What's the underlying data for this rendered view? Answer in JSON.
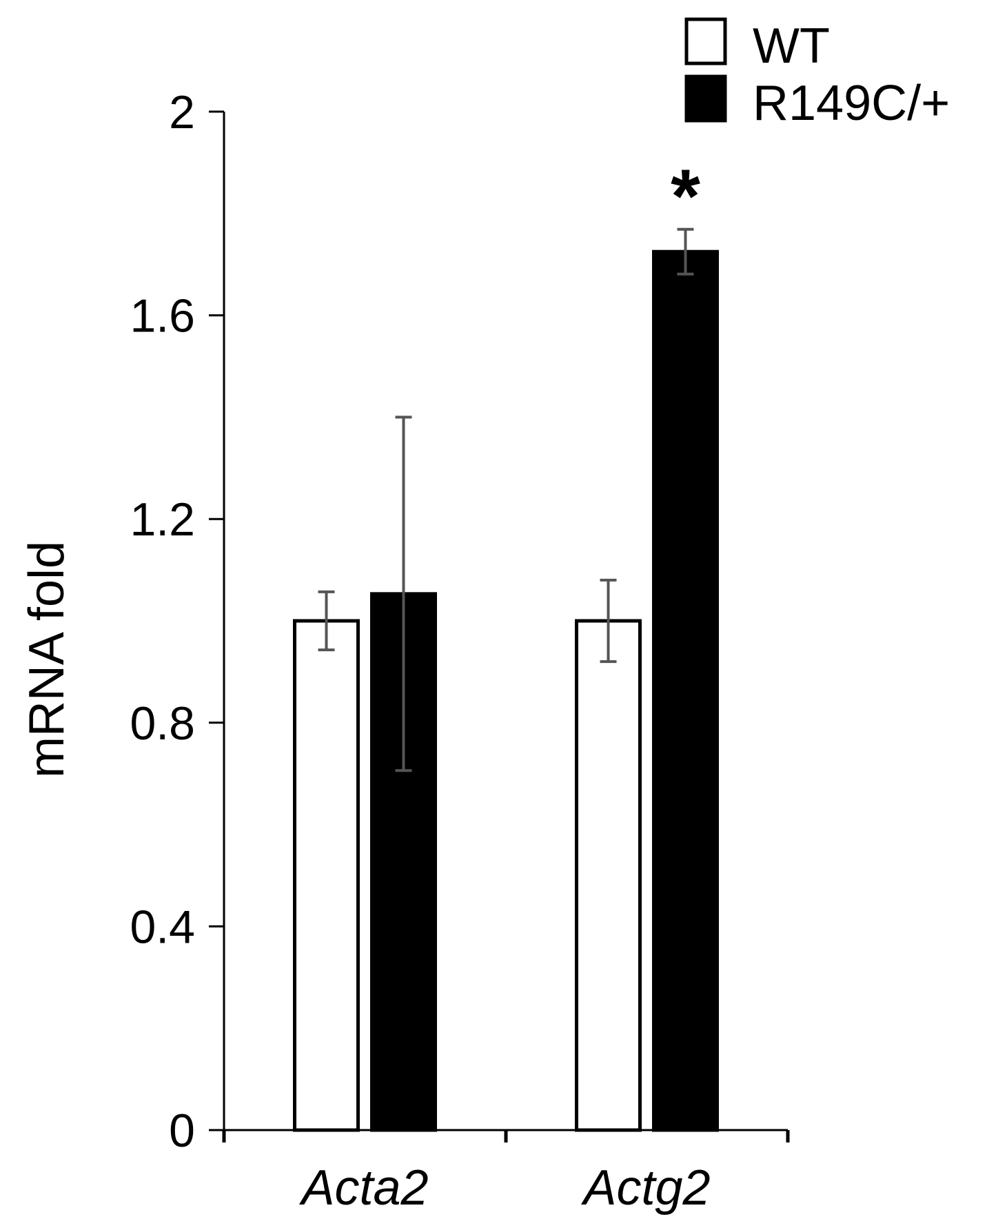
{
  "chart_data": {
    "type": "bar",
    "title": "",
    "xlabel": "",
    "ylabel": "mRNA fold",
    "ylim": [
      0,
      2
    ],
    "yticks": [
      "0",
      "0.4",
      "0.8",
      "1.2",
      "1.6",
      "2"
    ],
    "categories": [
      "Acta2",
      "Actg2"
    ],
    "series": [
      {
        "name": "WT",
        "color": "#ffffff",
        "values": [
          1.0,
          1.0
        ],
        "errors": [
          0.057,
          0.08
        ]
      },
      {
        "name": "R149C/+",
        "color": "#000000",
        "values": [
          1.053,
          1.725
        ],
        "errors": [
          0.347,
          0.044
        ]
      }
    ],
    "annotations": [
      {
        "text": "*",
        "category": "Actg2",
        "series": "R149C/+"
      }
    ],
    "grid": false,
    "legend_position": "top-right"
  }
}
